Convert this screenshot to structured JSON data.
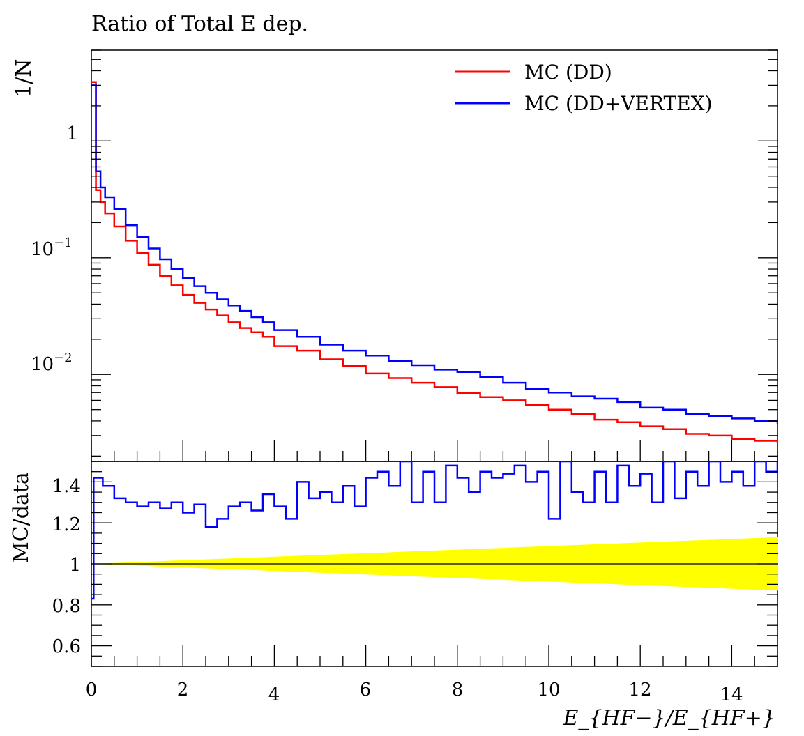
{
  "chart_data": [
    {
      "type": "line",
      "title": "Ratio of Total E dep.",
      "ylabel": "1/N",
      "yscale": "log",
      "xlim": [
        0,
        15
      ],
      "ylim": [
        0.0018,
        6
      ],
      "yticks": [
        {
          "value": 1,
          "label": "1",
          "exp": ""
        },
        {
          "value": 0.1,
          "label": "10",
          "exp": "−1"
        },
        {
          "value": 0.01,
          "label": "10",
          "exp": "−2"
        }
      ],
      "legend_position": "top-right",
      "grid": false,
      "series": [
        {
          "name": "MC (DD)",
          "color": "#ff0000",
          "points": [
            [
              0.0,
              3.2
            ],
            [
              0.1,
              0.38
            ],
            [
              0.2,
              0.3
            ],
            [
              0.3,
              0.24
            ],
            [
              0.5,
              0.185
            ],
            [
              0.75,
              0.14
            ],
            [
              1.0,
              0.11
            ],
            [
              1.25,
              0.087
            ],
            [
              1.5,
              0.07
            ],
            [
              1.75,
              0.058
            ],
            [
              2.0,
              0.048
            ],
            [
              2.25,
              0.041
            ],
            [
              2.5,
              0.036
            ],
            [
              2.75,
              0.032
            ],
            [
              3.0,
              0.028
            ],
            [
              3.25,
              0.025
            ],
            [
              3.5,
              0.023
            ],
            [
              3.75,
              0.021
            ],
            [
              4.0,
              0.0175
            ],
            [
              4.5,
              0.016
            ],
            [
              5.0,
              0.0135
            ],
            [
              5.5,
              0.0118
            ],
            [
              6.0,
              0.0102
            ],
            [
              6.5,
              0.0093
            ],
            [
              7.0,
              0.0085
            ],
            [
              7.5,
              0.0078
            ],
            [
              8.0,
              0.0069
            ],
            [
              8.5,
              0.0064
            ],
            [
              9.0,
              0.006
            ],
            [
              9.5,
              0.0055
            ],
            [
              10.0,
              0.005
            ],
            [
              10.5,
              0.0046
            ],
            [
              11.0,
              0.0041
            ],
            [
              11.5,
              0.0039
            ],
            [
              12.0,
              0.0036
            ],
            [
              12.5,
              0.0034
            ],
            [
              13.0,
              0.0031
            ],
            [
              13.5,
              0.003
            ],
            [
              14.0,
              0.0028
            ],
            [
              14.5,
              0.0027
            ],
            [
              15.0,
              0.0026
            ]
          ]
        },
        {
          "name": "MC (DD+VERTEX)",
          "color": "#0000ff",
          "points": [
            [
              0.0,
              3.0
            ],
            [
              0.1,
              0.55
            ],
            [
              0.2,
              0.4
            ],
            [
              0.3,
              0.33
            ],
            [
              0.5,
              0.26
            ],
            [
              0.75,
              0.19
            ],
            [
              1.0,
              0.15
            ],
            [
              1.25,
              0.12
            ],
            [
              1.5,
              0.097
            ],
            [
              1.75,
              0.08
            ],
            [
              2.0,
              0.067
            ],
            [
              2.25,
              0.057
            ],
            [
              2.5,
              0.05
            ],
            [
              2.75,
              0.044
            ],
            [
              3.0,
              0.039
            ],
            [
              3.25,
              0.035
            ],
            [
              3.5,
              0.031
            ],
            [
              3.75,
              0.028
            ],
            [
              4.0,
              0.024
            ],
            [
              4.5,
              0.021
            ],
            [
              5.0,
              0.018
            ],
            [
              5.5,
              0.016
            ],
            [
              6.0,
              0.0145
            ],
            [
              6.5,
              0.013
            ],
            [
              7.0,
              0.012
            ],
            [
              7.5,
              0.011
            ],
            [
              8.0,
              0.0105
            ],
            [
              8.5,
              0.0095
            ],
            [
              9.0,
              0.0085
            ],
            [
              9.5,
              0.0075
            ],
            [
              10.0,
              0.007
            ],
            [
              10.5,
              0.0065
            ],
            [
              11.0,
              0.0062
            ],
            [
              11.5,
              0.0058
            ],
            [
              12.0,
              0.0052
            ],
            [
              12.5,
              0.005
            ],
            [
              13.0,
              0.0046
            ],
            [
              13.5,
              0.0044
            ],
            [
              14.0,
              0.0042
            ],
            [
              14.5,
              0.004
            ],
            [
              15.0,
              0.0038
            ]
          ]
        }
      ]
    },
    {
      "type": "line",
      "xlabel": "E_{HF−}/E_{HF+}",
      "ylabel": "MC/data",
      "xlim": [
        0,
        15
      ],
      "ylim": [
        0.5,
        1.5
      ],
      "xticks": [
        0,
        2,
        4,
        6,
        8,
        10,
        12,
        14
      ],
      "yticks": [
        0.6,
        0.8,
        1,
        1.2,
        1.4
      ],
      "ytick_labels": [
        "0.6",
        "0.8",
        "1",
        "1.2",
        "1.4"
      ],
      "reference_line": 1,
      "band": {
        "color": "#ffff00",
        "halfwidth_at_x0": 0.0,
        "halfwidth_at_x15": 0.13
      },
      "series": [
        {
          "name": "MC (DD+VERTEX)",
          "color": "#0000ff",
          "points": [
            [
              0.0,
              0.83
            ],
            [
              0.05,
              1.42
            ],
            [
              0.25,
              1.38
            ],
            [
              0.5,
              1.32
            ],
            [
              0.75,
              1.3
            ],
            [
              1.0,
              1.28
            ],
            [
              1.25,
              1.3
            ],
            [
              1.5,
              1.27
            ],
            [
              1.75,
              1.3
            ],
            [
              2.0,
              1.25
            ],
            [
              2.25,
              1.29
            ],
            [
              2.5,
              1.18
            ],
            [
              2.75,
              1.22
            ],
            [
              3.0,
              1.28
            ],
            [
              3.25,
              1.3
            ],
            [
              3.5,
              1.26
            ],
            [
              3.75,
              1.34
            ],
            [
              4.0,
              1.28
            ],
            [
              4.25,
              1.22
            ],
            [
              4.5,
              1.4
            ],
            [
              4.75,
              1.32
            ],
            [
              5.0,
              1.35
            ],
            [
              5.25,
              1.3
            ],
            [
              5.5,
              1.38
            ],
            [
              5.75,
              1.28
            ],
            [
              6.0,
              1.42
            ],
            [
              6.25,
              1.45
            ],
            [
              6.5,
              1.38
            ],
            [
              6.75,
              1.5
            ],
            [
              7.0,
              1.3
            ],
            [
              7.25,
              1.45
            ],
            [
              7.5,
              1.3
            ],
            [
              7.75,
              1.48
            ],
            [
              8.0,
              1.42
            ],
            [
              8.25,
              1.35
            ],
            [
              8.5,
              1.45
            ],
            [
              8.75,
              1.42
            ],
            [
              9.0,
              1.44
            ],
            [
              9.25,
              1.48
            ],
            [
              9.5,
              1.4
            ],
            [
              9.75,
              1.45
            ],
            [
              10.0,
              1.22
            ],
            [
              10.25,
              1.5
            ],
            [
              10.5,
              1.35
            ],
            [
              10.75,
              1.3
            ],
            [
              11.0,
              1.45
            ],
            [
              11.25,
              1.3
            ],
            [
              11.5,
              1.48
            ],
            [
              11.75,
              1.38
            ],
            [
              12.0,
              1.44
            ],
            [
              12.25,
              1.3
            ],
            [
              12.5,
              1.5
            ],
            [
              12.75,
              1.32
            ],
            [
              13.0,
              1.45
            ],
            [
              13.25,
              1.38
            ],
            [
              13.5,
              1.5
            ],
            [
              13.75,
              1.4
            ],
            [
              14.0,
              1.45
            ],
            [
              14.25,
              1.38
            ],
            [
              14.5,
              1.5
            ],
            [
              14.75,
              1.45
            ],
            [
              15.0,
              1.5
            ]
          ]
        }
      ]
    }
  ]
}
